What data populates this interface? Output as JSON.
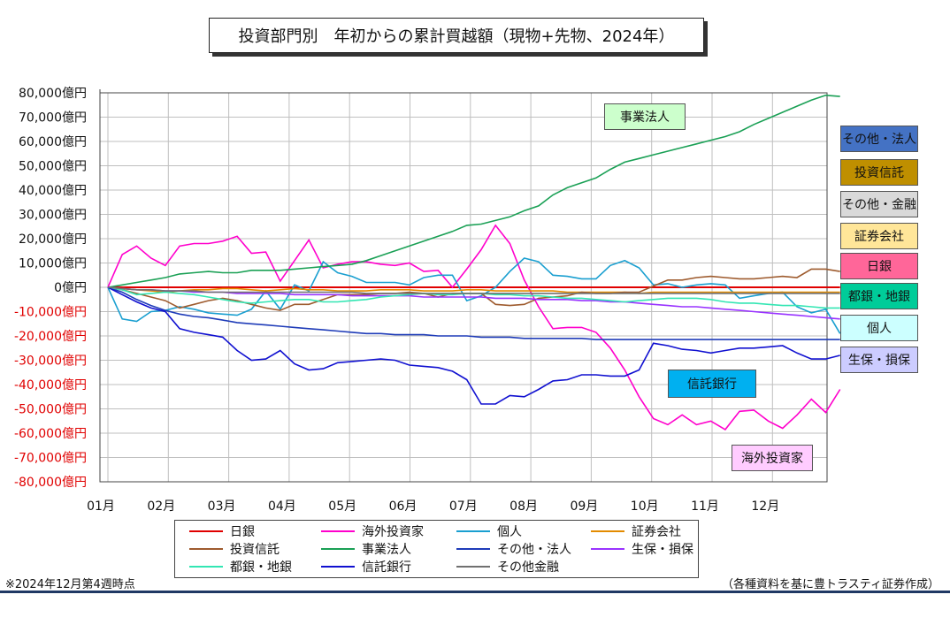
{
  "title": "投資部門別　年初からの累計買越額（現物+先物、2024年）",
  "footnote": "※2024年12月第4週時点",
  "source": "（各種資料を基に豊トラスティ証券作成）",
  "side_labels": [
    {
      "label": "その他・法人",
      "color": "#4472c4"
    },
    {
      "label": "投資信託",
      "color": "#bf8f00"
    },
    {
      "label": "その他・金融",
      "color": "#d9d9d9"
    },
    {
      "label": "証券会社",
      "color": "#ffe699"
    },
    {
      "label": "日銀",
      "color": "#ff6699"
    },
    {
      "label": "都銀・地銀",
      "color": "#00cc99"
    },
    {
      "label": "個人",
      "color": "#ccffff"
    },
    {
      "label": "生保・損保",
      "color": "#ccccff"
    }
  ],
  "callouts": {
    "jigyo": {
      "label": "事業法人",
      "color": "#ccffcc"
    },
    "shintaku": {
      "label": "信託銀行",
      "color": "#00b0f0"
    },
    "kaigai": {
      "label": "海外投資家",
      "color": "#ffccff"
    }
  },
  "chart_data": {
    "type": "line",
    "xticks": [
      "01月",
      "02月",
      "03月",
      "04月",
      "05月",
      "06月",
      "07月",
      "08月",
      "09月",
      "10月",
      "11月",
      "12月"
    ],
    "yticks": [
      "80,000億円",
      "70,000億円",
      "60,000億円",
      "50,000億円",
      "40,000億円",
      "30,000億円",
      "20,000億円",
      "10,000億円",
      "0億円",
      "-10,000億円",
      "-20,000億円",
      "-30,000億円",
      "-40,000億円",
      "-50,000億円",
      "-60,000億円",
      "-70,000億円",
      "-80,000億円"
    ],
    "ylim": [
      -80000,
      80000
    ],
    "x_unit": "week",
    "series": [
      {
        "name": "日銀",
        "color": "#e00000",
        "values": [
          0,
          0,
          0,
          0,
          0,
          0,
          0,
          0,
          0,
          0,
          0,
          0,
          0,
          0,
          0,
          0,
          0,
          0,
          0,
          0,
          0,
          0,
          0,
          0,
          0,
          0,
          0,
          0,
          0,
          0,
          0,
          0,
          0,
          0,
          0,
          0,
          0,
          0,
          0,
          0,
          0,
          0,
          0,
          0,
          0,
          0,
          0,
          0,
          0,
          0,
          0,
          0
        ]
      },
      {
        "name": "海外投資家",
        "color": "#ff00cc",
        "values": [
          0,
          13500,
          17000,
          12000,
          9000,
          17000,
          18000,
          18000,
          19000,
          21000,
          14000,
          14500,
          2500,
          11000,
          19500,
          8000,
          9500,
          10500,
          10500,
          9500,
          9000,
          10000,
          6500,
          7000,
          0,
          7500,
          15500,
          25500,
          18000,
          3000,
          -8000,
          -17000,
          -16500,
          -16500,
          -18500,
          -25000,
          -34000,
          -45000,
          -54000,
          -56500,
          -52500,
          -56500,
          -55000,
          -58500,
          -51000,
          -50500,
          -55000,
          -58000,
          -52500,
          -46000,
          -51500,
          -42000
        ]
      },
      {
        "name": "個人",
        "color": "#1a9fd0",
        "values": [
          0,
          -13000,
          -14000,
          -10000,
          -9500,
          -8000,
          -9000,
          -10500,
          -11000,
          -11500,
          -9000,
          -1500,
          -9000,
          1000,
          -1500,
          10500,
          6000,
          4500,
          2000,
          2000,
          2000,
          1000,
          4000,
          5000,
          5000,
          -5500,
          -3500,
          0,
          6500,
          12000,
          10500,
          5000,
          4500,
          3500,
          3500,
          9000,
          11000,
          8000,
          1000,
          1500,
          0,
          1000,
          1500,
          1000,
          -4500,
          -3500,
          -2500,
          -2000,
          -8000,
          -10500,
          -9000,
          -19000
        ]
      },
      {
        "name": "証券会社",
        "color": "#e38b00",
        "values": [
          0,
          -500,
          -1000,
          -1500,
          -2000,
          -1500,
          -1000,
          -1000,
          -500,
          -500,
          -1000,
          -1500,
          -1000,
          -500,
          -1000,
          -1000,
          -1500,
          -1500,
          -1500,
          -1000,
          -1000,
          -1000,
          -1500,
          -1500,
          -1500,
          -1000,
          -1000,
          -1500,
          -1500,
          -1500,
          -1500,
          -1500,
          -2000,
          -2000,
          -2000,
          -2000,
          -2000,
          -2500,
          -2000,
          -2000,
          -2000,
          -2000,
          -2000,
          -2000,
          -2000,
          -2000,
          -2000,
          -2000,
          -2000,
          -2000,
          -2000,
          -2000
        ]
      },
      {
        "name": "投資信託",
        "color": "#9e5b2e",
        "values": [
          0,
          -1000,
          -2500,
          -4000,
          -5500,
          -8500,
          -7000,
          -5500,
          -4500,
          -5500,
          -7000,
          -8500,
          -9500,
          -7000,
          -7000,
          -5000,
          -3000,
          -3000,
          -3000,
          -2500,
          -2500,
          -2000,
          -2500,
          -4000,
          -2500,
          -2500,
          -2500,
          -7000,
          -7500,
          -7000,
          -4500,
          -4000,
          -3500,
          -2000,
          -2500,
          -2500,
          -2000,
          -2000,
          500,
          3000,
          3000,
          4000,
          4500,
          4000,
          3500,
          3500,
          4000,
          4500,
          4000,
          7500,
          7500,
          6500
        ]
      },
      {
        "name": "事業法人",
        "color": "#1aa055",
        "values": [
          0,
          1000,
          2000,
          3000,
          4000,
          5500,
          6000,
          6500,
          6000,
          6000,
          7000,
          7000,
          7000,
          7500,
          8000,
          8500,
          9000,
          9500,
          11000,
          13000,
          15000,
          17000,
          19000,
          21000,
          23000,
          25500,
          26000,
          27500,
          29000,
          31500,
          33500,
          38000,
          41000,
          43000,
          45000,
          48500,
          51500,
          53000,
          54500,
          56000,
          57500,
          59000,
          60500,
          62000,
          64000,
          67000,
          69500,
          72000,
          74500,
          77000,
          79000,
          78500
        ]
      },
      {
        "name": "その他・法人",
        "color": "#1f3cb8",
        "values": [
          0,
          -2000,
          -5000,
          -7500,
          -9500,
          -11000,
          -12000,
          -12500,
          -13500,
          -14500,
          -15000,
          -15500,
          -16000,
          -16500,
          -17000,
          -17500,
          -18000,
          -18500,
          -19000,
          -19000,
          -19500,
          -19500,
          -19500,
          -20000,
          -20000,
          -20000,
          -20500,
          -20500,
          -20500,
          -21000,
          -21000,
          -21000,
          -21000,
          -21000,
          -21500,
          -21500,
          -21500,
          -21500,
          -21500,
          -21500,
          -21500,
          -21500,
          -21500,
          -21500,
          -21500,
          -21500,
          -21500,
          -21500,
          -21500,
          -21500,
          -21500,
          -21500
        ]
      },
      {
        "name": "生保・損保",
        "color": "#9933ff",
        "values": [
          0,
          -500,
          -1000,
          -1000,
          -1500,
          -1500,
          -2000,
          -2000,
          -2000,
          -2500,
          -2500,
          -2500,
          -2500,
          -3000,
          -3000,
          -3000,
          -3000,
          -3500,
          -3500,
          -3500,
          -3500,
          -3500,
          -4000,
          -4000,
          -4000,
          -4000,
          -4000,
          -4500,
          -4500,
          -4500,
          -5000,
          -5000,
          -5000,
          -5500,
          -5500,
          -6000,
          -6000,
          -6500,
          -7000,
          -7500,
          -8000,
          -8000,
          -8500,
          -9000,
          -9500,
          -10000,
          -10500,
          -11000,
          -11500,
          -12000,
          -12500,
          -13000
        ]
      },
      {
        "name": "都銀・地銀",
        "color": "#33e6b3",
        "values": [
          0,
          -1000,
          -3000,
          -2500,
          -2000,
          -2500,
          -3000,
          -4000,
          -5000,
          -6000,
          -6500,
          -6000,
          -5500,
          -5000,
          -5000,
          -6000,
          -6000,
          -5500,
          -5000,
          -4000,
          -3500,
          -3000,
          -2500,
          -3000,
          -3000,
          -2500,
          -2500,
          -3000,
          -3000,
          -3500,
          -3500,
          -4000,
          -4500,
          -4500,
          -5000,
          -5500,
          -6000,
          -5500,
          -5000,
          -4500,
          -4500,
          -4500,
          -5000,
          -6000,
          -6500,
          -6500,
          -7000,
          -7500,
          -7500,
          -8000,
          -8500,
          -8500
        ]
      },
      {
        "name": "信託銀行",
        "color": "#1010d0",
        "values": [
          0,
          -3000,
          -6000,
          -8500,
          -10000,
          -17000,
          -18500,
          -19500,
          -20500,
          -26000,
          -30000,
          -29500,
          -26000,
          -31500,
          -34000,
          -33500,
          -31000,
          -30500,
          -30000,
          -29500,
          -30000,
          -32000,
          -32500,
          -33000,
          -34500,
          -38000,
          -48000,
          -48000,
          -44500,
          -45000,
          -42000,
          -38500,
          -38000,
          -36000,
          -36000,
          -36500,
          -36500,
          -34000,
          -23000,
          -24000,
          -25500,
          -26000,
          -27000,
          -26000,
          -25000,
          -25000,
          -24500,
          -24000,
          -27000,
          -29500,
          -29500,
          -28000
        ]
      },
      {
        "name": "その他金融",
        "color": "#707070",
        "values": [
          0,
          -500,
          -1000,
          -1000,
          -1500,
          -1500,
          -1500,
          -2000,
          -2000,
          -2000,
          -2000,
          -2000,
          -2000,
          -2000,
          -2000,
          -2000,
          -2000,
          -2000,
          -2500,
          -2500,
          -2500,
          -2500,
          -2500,
          -2500,
          -2500,
          -2500,
          -2500,
          -2500,
          -2500,
          -2500,
          -2500,
          -2500,
          -2500,
          -2500,
          -2500,
          -2500,
          -2500,
          -2500,
          -2500,
          -2500,
          -2500,
          -2500,
          -2500,
          -2500,
          -2500,
          -2500,
          -2500,
          -2500,
          -2500,
          -2500,
          -2500,
          -2500
        ]
      }
    ]
  }
}
